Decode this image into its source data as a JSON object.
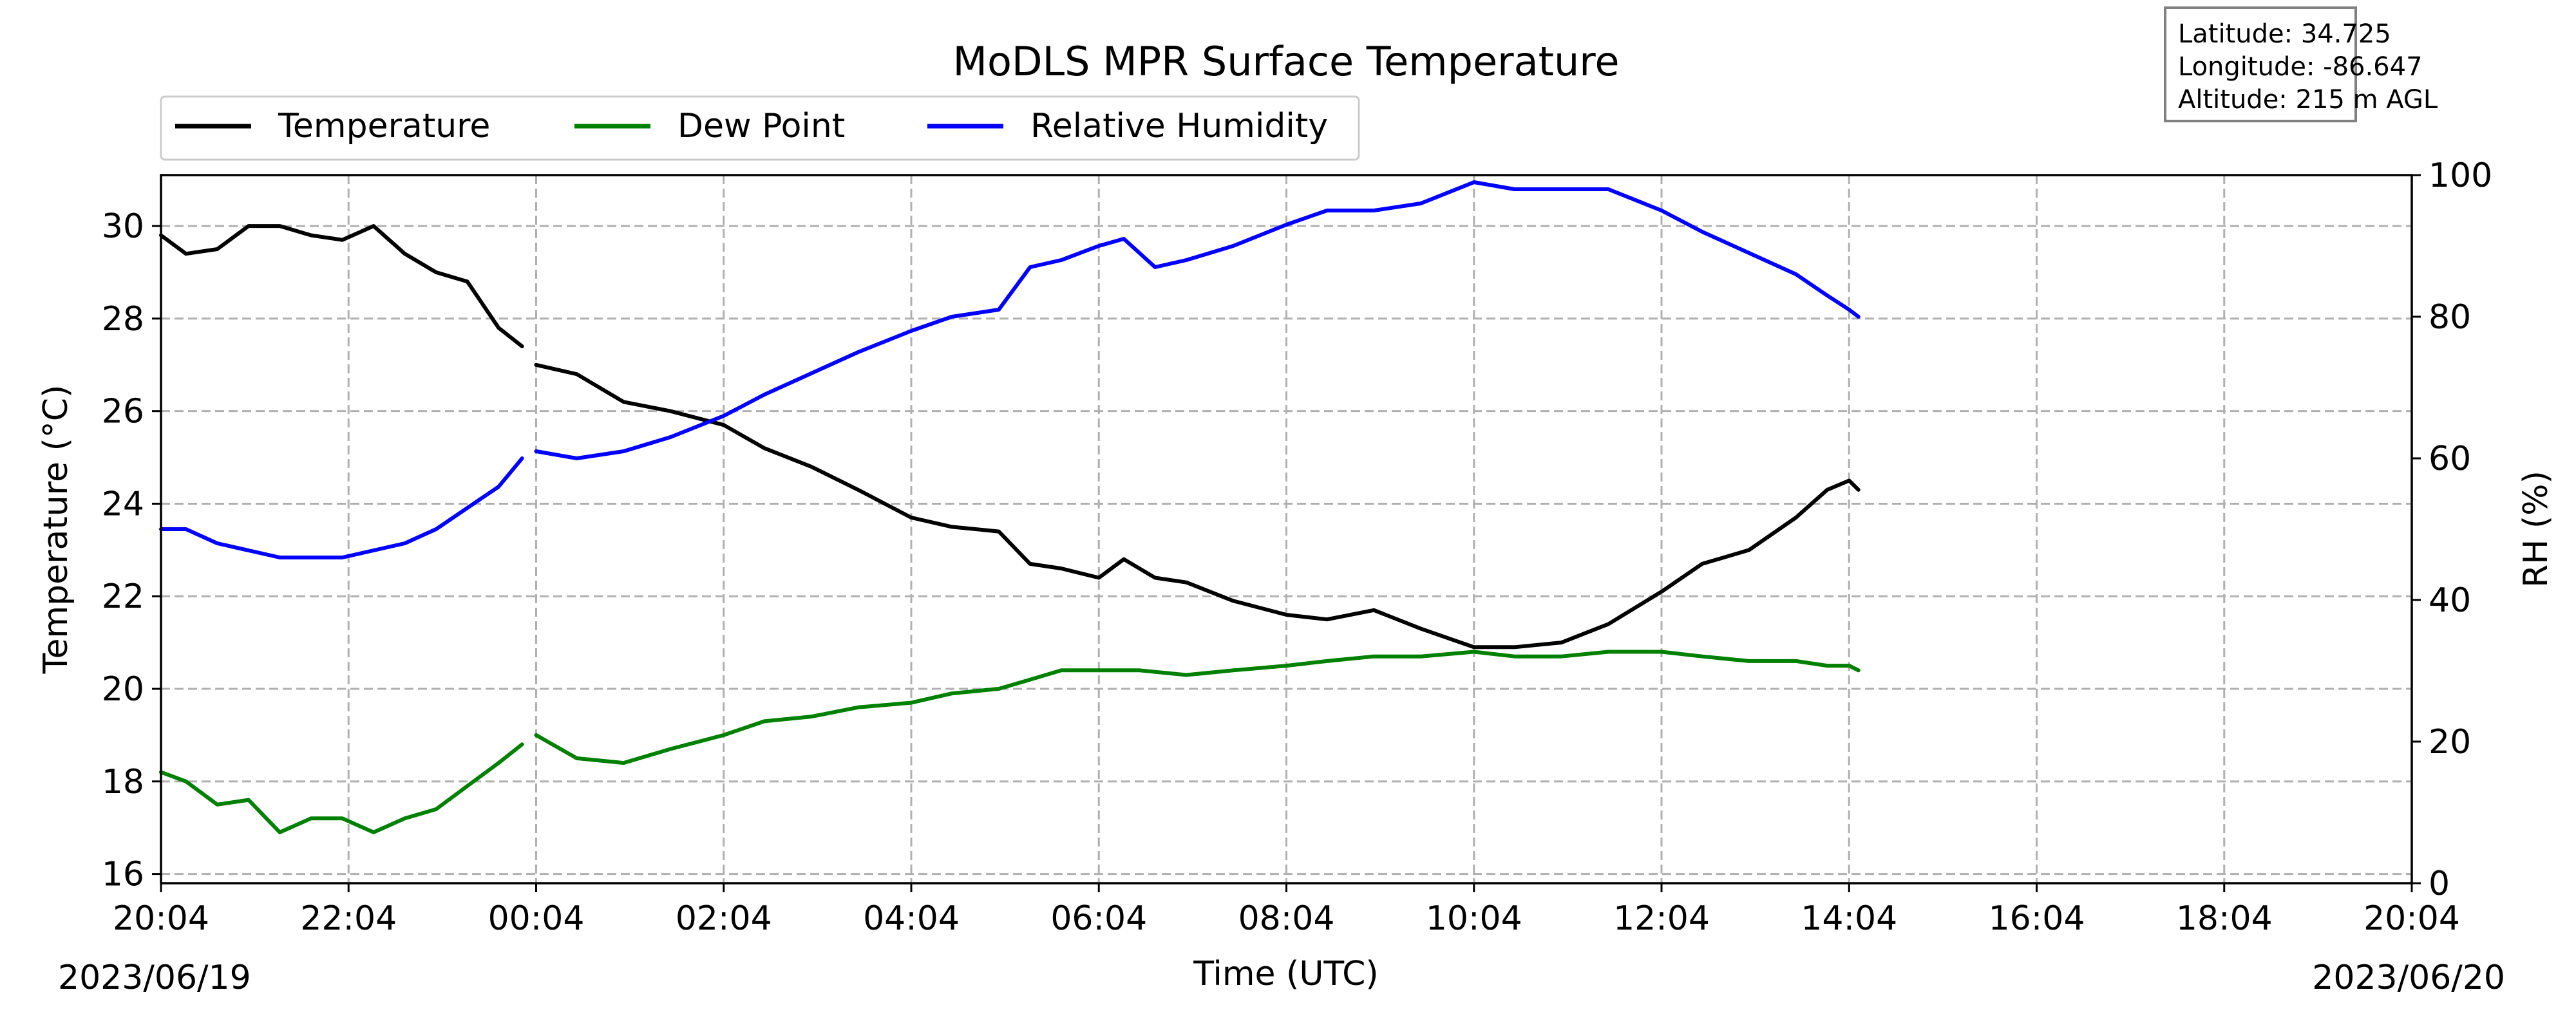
{
  "chart_data": {
    "type": "line",
    "title": "MoDLS MPR Surface Temperature",
    "xlabel": "Time (UTC)",
    "ylabel_left": "Temperature (°C)",
    "ylabel_left_display": "Temperature ($^\\circ$C)",
    "ylabel_right": "RH (%)",
    "xlim": [
      "2023-06-19T20:04",
      "2023-06-20T20:04"
    ],
    "ylim_left": [
      15.8,
      31.1
    ],
    "ylim_right": [
      0,
      100
    ],
    "x_tick_labels": [
      "20:04",
      "22:04",
      "00:04",
      "02:04",
      "04:04",
      "06:04",
      "08:04",
      "10:04",
      "12:04",
      "14:04",
      "16:04",
      "18:04",
      "20:04"
    ],
    "y_left_ticks": [
      16,
      18,
      20,
      22,
      24,
      26,
      28,
      30
    ],
    "y_right_ticks": [
      0,
      20,
      40,
      60,
      80,
      100
    ],
    "date_labels": {
      "start": "2023/06/19",
      "end": "2023/06/20"
    },
    "grid": true,
    "legend_position": "top-left, outside plot area",
    "series": [
      {
        "name": "Temperature",
        "axis": "left",
        "color": "#000000",
        "x": [
          "2023-06-19T20:04",
          "2023-06-19T20:20",
          "2023-06-19T20:40",
          "2023-06-19T21:00",
          "2023-06-19T21:20",
          "2023-06-19T21:40",
          "2023-06-19T22:00",
          "2023-06-19T22:20",
          "2023-06-19T22:40",
          "2023-06-19T23:00",
          "2023-06-19T23:20",
          "2023-06-19T23:40",
          "2023-06-19T23:55",
          "2023-06-20T00:04",
          "2023-06-20T00:30",
          "2023-06-20T01:00",
          "2023-06-20T01:30",
          "2023-06-20T02:04",
          "2023-06-20T02:30",
          "2023-06-20T03:00",
          "2023-06-20T03:30",
          "2023-06-20T04:04",
          "2023-06-20T04:30",
          "2023-06-20T05:00",
          "2023-06-20T05:20",
          "2023-06-20T05:40",
          "2023-06-20T06:04",
          "2023-06-20T06:20",
          "2023-06-20T06:40",
          "2023-06-20T07:00",
          "2023-06-20T07:30",
          "2023-06-20T08:04",
          "2023-06-20T08:30",
          "2023-06-20T09:00",
          "2023-06-20T09:30",
          "2023-06-20T10:04",
          "2023-06-20T10:30",
          "2023-06-20T11:00",
          "2023-06-20T11:30",
          "2023-06-20T12:04",
          "2023-06-20T12:30",
          "2023-06-20T13:00",
          "2023-06-20T13:30",
          "2023-06-20T13:50",
          "2023-06-20T14:04",
          "2023-06-20T14:10"
        ],
        "values": [
          29.8,
          29.4,
          29.5,
          30.0,
          30.0,
          29.8,
          29.7,
          30.0,
          29.4,
          29.0,
          28.8,
          27.8,
          27.4,
          27.0,
          26.8,
          26.2,
          26.0,
          25.7,
          25.2,
          24.8,
          24.3,
          23.7,
          23.5,
          23.4,
          22.7,
          22.6,
          22.4,
          22.8,
          22.4,
          22.3,
          21.9,
          21.6,
          21.5,
          21.7,
          21.3,
          20.9,
          20.9,
          21.0,
          21.4,
          22.1,
          22.7,
          23.0,
          23.7,
          24.3,
          24.5,
          24.3
        ]
      },
      {
        "name": "Dew Point",
        "axis": "left",
        "color": "#008000",
        "x": [
          "2023-06-19T20:04",
          "2023-06-19T20:20",
          "2023-06-19T20:40",
          "2023-06-19T21:00",
          "2023-06-19T21:20",
          "2023-06-19T21:40",
          "2023-06-19T22:00",
          "2023-06-19T22:20",
          "2023-06-19T22:40",
          "2023-06-19T23:00",
          "2023-06-19T23:20",
          "2023-06-19T23:40",
          "2023-06-19T23:55",
          "2023-06-20T00:04",
          "2023-06-20T00:30",
          "2023-06-20T01:00",
          "2023-06-20T01:30",
          "2023-06-20T02:04",
          "2023-06-20T02:30",
          "2023-06-20T03:00",
          "2023-06-20T03:30",
          "2023-06-20T04:04",
          "2023-06-20T04:30",
          "2023-06-20T05:00",
          "2023-06-20T05:20",
          "2023-06-20T05:40",
          "2023-06-20T06:04",
          "2023-06-20T06:30",
          "2023-06-20T07:00",
          "2023-06-20T07:30",
          "2023-06-20T08:04",
          "2023-06-20T08:30",
          "2023-06-20T09:00",
          "2023-06-20T09:30",
          "2023-06-20T10:04",
          "2023-06-20T10:30",
          "2023-06-20T11:00",
          "2023-06-20T11:30",
          "2023-06-20T12:04",
          "2023-06-20T12:30",
          "2023-06-20T13:00",
          "2023-06-20T13:30",
          "2023-06-20T13:50",
          "2023-06-20T14:04",
          "2023-06-20T14:10"
        ],
        "values": [
          18.2,
          18.0,
          17.5,
          17.6,
          16.9,
          17.2,
          17.2,
          16.9,
          17.2,
          17.4,
          17.9,
          18.4,
          18.8,
          19.0,
          18.5,
          18.4,
          18.7,
          19.0,
          19.3,
          19.4,
          19.6,
          19.7,
          19.9,
          20.0,
          20.2,
          20.4,
          20.4,
          20.4,
          20.3,
          20.4,
          20.5,
          20.6,
          20.7,
          20.7,
          20.8,
          20.7,
          20.7,
          20.8,
          20.8,
          20.7,
          20.6,
          20.6,
          20.5,
          20.5,
          20.4
        ]
      },
      {
        "name": "Relative Humidity",
        "axis": "right",
        "color": "#0000ff",
        "x": [
          "2023-06-19T20:04",
          "2023-06-19T20:20",
          "2023-06-19T20:40",
          "2023-06-19T21:00",
          "2023-06-19T21:20",
          "2023-06-19T21:40",
          "2023-06-19T22:00",
          "2023-06-19T22:20",
          "2023-06-19T22:40",
          "2023-06-19T23:00",
          "2023-06-19T23:20",
          "2023-06-19T23:40",
          "2023-06-19T23:55",
          "2023-06-20T00:04",
          "2023-06-20T00:30",
          "2023-06-20T01:00",
          "2023-06-20T01:30",
          "2023-06-20T02:04",
          "2023-06-20T02:30",
          "2023-06-20T03:00",
          "2023-06-20T03:30",
          "2023-06-20T04:04",
          "2023-06-20T04:30",
          "2023-06-20T05:00",
          "2023-06-20T05:20",
          "2023-06-20T05:40",
          "2023-06-20T06:04",
          "2023-06-20T06:20",
          "2023-06-20T06:40",
          "2023-06-20T07:00",
          "2023-06-20T07:30",
          "2023-06-20T08:04",
          "2023-06-20T08:30",
          "2023-06-20T09:00",
          "2023-06-20T09:30",
          "2023-06-20T10:04",
          "2023-06-20T10:30",
          "2023-06-20T11:00",
          "2023-06-20T11:30",
          "2023-06-20T12:04",
          "2023-06-20T12:30",
          "2023-06-20T13:00",
          "2023-06-20T13:30",
          "2023-06-20T13:50",
          "2023-06-20T14:04",
          "2023-06-20T14:10"
        ],
        "values": [
          50,
          50,
          48,
          47,
          46,
          46,
          46,
          47,
          48,
          50,
          53,
          56,
          60,
          61,
          60,
          61,
          63,
          66,
          69,
          72,
          75,
          78,
          80,
          81,
          87,
          88,
          90,
          91,
          87,
          88,
          90,
          93,
          95,
          95,
          96,
          99,
          98,
          98,
          98,
          95,
          92,
          89,
          86,
          83,
          81,
          80
        ]
      }
    ]
  },
  "info_box": {
    "latitude": "Latitude: 34.725",
    "longitude": "Longitude: -86.647",
    "altitude": "Altitude: 215 m AGL"
  }
}
